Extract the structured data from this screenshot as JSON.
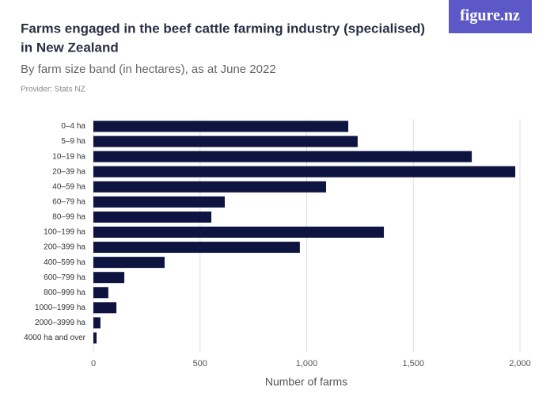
{
  "logo": "figure.nz",
  "chart_data": {
    "type": "barh",
    "title": [
      "Farms engaged in the beef cattle farming industry (specialised)",
      "in New Zealand"
    ],
    "subtitle": "By farm size band (in hectares), as at June 2022",
    "provider": "Provider: Stats NZ",
    "x_label": "Number of farms",
    "categories": [
      "0–4 ha",
      "5–9 ha",
      "10–19 ha",
      "20–39 ha",
      "40–59 ha",
      "60–79 ha",
      "80–99 ha",
      "100–199 ha",
      "200–399 ha",
      "400–599 ha",
      "600–799 ha",
      "800–999 ha",
      "1000–1999 ha",
      "2000–3999 ha",
      "4000 ha and over"
    ],
    "values": [
      1195,
      1239,
      1774,
      1978,
      1091,
      616,
      553,
      1362,
      968,
      334,
      145,
      70,
      108,
      33,
      15
    ],
    "color": "#0d1440",
    "xlim": [
      0,
      2000
    ],
    "xticks": [
      0,
      500,
      {
        "value": 1000,
        "label": "1,000"
      },
      {
        "value": 1500,
        "label": "1,500"
      },
      {
        "value": 2000,
        "label": "2,000"
      }
    ],
    "grid": true
  }
}
